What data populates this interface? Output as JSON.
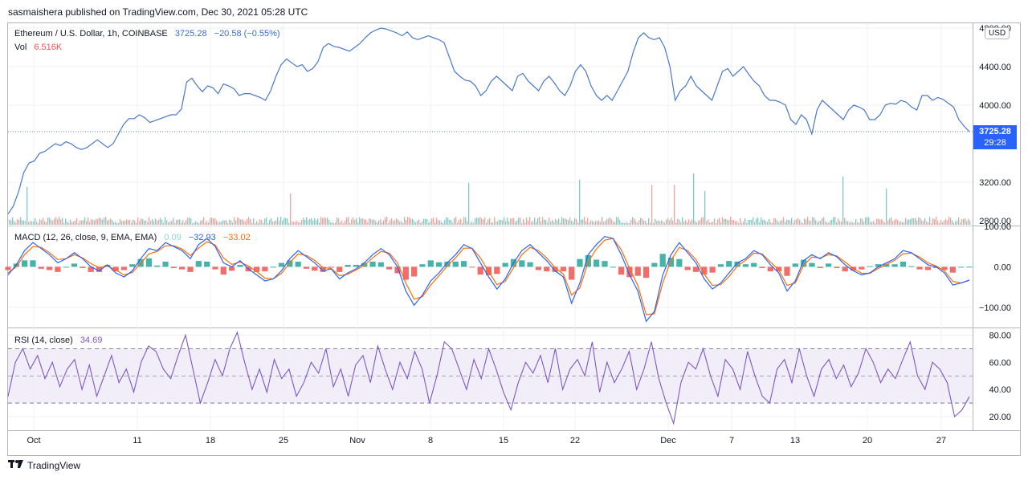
{
  "header": {
    "published": "sasmaishera published on TradingView.com, Dec 30, 2021 05:28 UTC"
  },
  "price_legend": {
    "symbol": "Ethereum / U.S. Dollar, 1h, COINBASE",
    "last": "3725.28",
    "change": "−20.58 (−0.55%)",
    "vol_label": "Vol",
    "vol_value": "6.516K"
  },
  "macd_legend": {
    "title": "MACD (12, 26, close, 9, EMA, EMA)",
    "hist": "0.09",
    "macd": "−32.93",
    "signal": "−33.02"
  },
  "rsi_legend": {
    "title": "RSI (14, close)",
    "value": "34.69"
  },
  "price_tag": {
    "price": "3725.28",
    "countdown": "29:28"
  },
  "currency_button": "USD",
  "footer": {
    "brand": "TradingView",
    "logo": "tradingview-logo-icon"
  },
  "colors": {
    "price_line": "#4a78c9",
    "macd_line": "#2962ff",
    "signal_line": "#ff6d00",
    "hist_up": "#26a69a",
    "hist_down": "#ef5350",
    "rsi_line": "#7e57c2",
    "rsi_band": "#ede7f6",
    "vol_up": "#80cbc4",
    "vol_down": "#f7a19a",
    "price_tag": "#2962ff",
    "grid": "#eef0f3"
  },
  "chart_data": [
    {
      "type": "line",
      "panel": "price",
      "title": "Ethereum / U.S. Dollar, 1h, COINBASE",
      "y_ticks": [
        "4800.00",
        "4400.00",
        "4000.00",
        "3200.00",
        "2800.00"
      ],
      "x_ticks": [
        "Oct",
        "11",
        "18",
        "25",
        "Nov",
        "8",
        "15",
        "22",
        "Dec",
        "7",
        "13",
        "20",
        "27"
      ],
      "ylim": [
        2750,
        4850
      ],
      "last_value": 3725.28,
      "series": [
        {
          "values": [
            2870,
            2950,
            3100,
            3300,
            3400,
            3420,
            3500,
            3520,
            3560,
            3600,
            3580,
            3620,
            3600,
            3560,
            3540,
            3560,
            3600,
            3640,
            3600,
            3560,
            3600,
            3700,
            3800,
            3860,
            3860,
            3900,
            3870,
            3820,
            3840,
            3860,
            3880,
            3900,
            3900,
            3960,
            4240,
            4280,
            4200,
            4140,
            4200,
            4180,
            4120,
            4220,
            4200,
            4170,
            4100,
            4120,
            4120,
            4100,
            4080,
            4050,
            4150,
            4300,
            4420,
            4480,
            4440,
            4400,
            4420,
            4350,
            4380,
            4450,
            4600,
            4640,
            4610,
            4600,
            4580,
            4560,
            4600,
            4640,
            4700,
            4750,
            4780,
            4800,
            4790,
            4770,
            4750,
            4720,
            4760,
            4700,
            4680,
            4700,
            4720,
            4700,
            4680,
            4650,
            4500,
            4350,
            4300,
            4260,
            4250,
            4200,
            4100,
            4150,
            4250,
            4300,
            4250,
            4200,
            4150,
            4300,
            4330,
            4250,
            4200,
            4150,
            4250,
            4300,
            4230,
            4150,
            4100,
            4200,
            4350,
            4420,
            4350,
            4200,
            4100,
            4050,
            4100,
            4050,
            4150,
            4250,
            4350,
            4550,
            4700,
            4750,
            4700,
            4680,
            4700,
            4600,
            4400,
            4050,
            4150,
            4200,
            4300,
            4200,
            4150,
            4100,
            4050,
            4200,
            4350,
            4380,
            4300,
            4350,
            4400,
            4320,
            4250,
            4200,
            4100,
            4050,
            4050,
            4030,
            4000,
            3850,
            3800,
            3900,
            3850,
            3700,
            3950,
            4050,
            4000,
            3950,
            3900,
            3850,
            3950,
            4000,
            3980,
            3950,
            3850,
            3850,
            3900,
            4000,
            4020,
            4010,
            4050,
            4030,
            3980,
            3950,
            4100,
            4100,
            4050,
            4080,
            4060,
            4020,
            3980,
            3850,
            3780,
            3725.28
          ]
        }
      ]
    },
    {
      "type": "bar",
      "panel": "volume",
      "title": "Vol",
      "note": "volume histogram overlaid at bottom of price pane",
      "last_value": 6516
    },
    {
      "type": "line",
      "panel": "macd",
      "title": "MACD (12, 26, close, 9, EMA, EMA)",
      "y_ticks": [
        "100.00",
        "0.00",
        "−100.00"
      ],
      "ylim": [
        -150,
        100
      ],
      "last_values": {
        "histogram": 0.09,
        "macd": -32.93,
        "signal": -33.02
      },
      "series": [
        {
          "name": "MACD",
          "values": [
            -20,
            5,
            40,
            60,
            45,
            30,
            10,
            20,
            35,
            20,
            0,
            -10,
            5,
            -15,
            -25,
            -10,
            20,
            45,
            40,
            60,
            50,
            40,
            20,
            55,
            70,
            50,
            10,
            0,
            15,
            -5,
            -20,
            -35,
            -30,
            -10,
            20,
            40,
            25,
            10,
            -10,
            -5,
            -30,
            -15,
            -5,
            10,
            30,
            45,
            30,
            0,
            -60,
            -95,
            -70,
            -35,
            -15,
            10,
            30,
            55,
            45,
            10,
            -25,
            -55,
            -30,
            10,
            40,
            55,
            35,
            15,
            -10,
            -25,
            -90,
            -40,
            30,
            55,
            75,
            70,
            30,
            -20,
            -60,
            -135,
            -110,
            -20,
            30,
            60,
            35,
            10,
            -30,
            -55,
            -40,
            -15,
            10,
            20,
            40,
            30,
            5,
            -15,
            -60,
            -35,
            15,
            30,
            20,
            35,
            25,
            5,
            -10,
            -20,
            -15,
            0,
            10,
            20,
            40,
            35,
            20,
            5,
            0,
            -15,
            -45,
            -40,
            -32.93
          ]
        },
        {
          "name": "Signal",
          "values": [
            -15,
            0,
            30,
            50,
            48,
            35,
            18,
            20,
            30,
            22,
            8,
            -2,
            2,
            -8,
            -20,
            -14,
            8,
            32,
            38,
            52,
            52,
            44,
            28,
            46,
            62,
            54,
            22,
            6,
            12,
            2,
            -12,
            -28,
            -30,
            -16,
            10,
            32,
            28,
            16,
            -2,
            -4,
            -22,
            -18,
            -8,
            4,
            22,
            38,
            34,
            10,
            -40,
            -80,
            -74,
            -45,
            -22,
            2,
            22,
            46,
            46,
            22,
            -12,
            -44,
            -36,
            -2,
            30,
            48,
            40,
            22,
            -2,
            -18,
            -70,
            -52,
            12,
            44,
            66,
            70,
            42,
            -4,
            -46,
            -118,
            -116,
            -40,
            16,
            48,
            40,
            18,
            -18,
            -46,
            -44,
            -24,
            2,
            16,
            34,
            32,
            12,
            -8,
            -46,
            -40,
            4,
            24,
            22,
            30,
            27,
            12,
            -4,
            -16,
            -16,
            -4,
            6,
            16,
            32,
            34,
            24,
            10,
            2,
            -10,
            -36,
            -40,
            -33.02
          ]
        }
      ]
    },
    {
      "type": "line",
      "panel": "rsi",
      "title": "RSI (14, close)",
      "y_ticks": [
        "80.00",
        "60.00",
        "40.00",
        "20.00"
      ],
      "ylim": [
        10,
        85
      ],
      "bands": [
        30,
        50,
        70
      ],
      "last_value": 34.69,
      "series": [
        {
          "values": [
            35,
            60,
            70,
            55,
            65,
            48,
            60,
            42,
            55,
            62,
            40,
            58,
            35,
            50,
            65,
            45,
            55,
            38,
            60,
            72,
            68,
            55,
            48,
            65,
            80,
            55,
            30,
            45,
            62,
            50,
            70,
            82,
            60,
            40,
            55,
            38,
            62,
            48,
            55,
            35,
            45,
            60,
            52,
            70,
            42,
            55,
            35,
            58,
            65,
            45,
            72,
            55,
            40,
            60,
            48,
            68,
            55,
            30,
            50,
            75,
            70,
            55,
            40,
            62,
            48,
            70,
            55,
            38,
            25,
            45,
            60,
            52,
            65,
            45,
            70,
            40,
            55,
            62,
            50,
            75,
            38,
            60,
            45,
            55,
            68,
            40,
            55,
            75,
            48,
            30,
            15,
            45,
            60,
            55,
            70,
            50,
            35,
            62,
            55,
            40,
            68,
            50,
            35,
            30,
            55,
            62,
            45,
            70,
            50,
            35,
            55,
            62,
            48,
            58,
            42,
            52,
            70,
            60,
            45,
            55,
            48,
            62,
            75,
            50,
            40,
            60,
            55,
            45,
            20,
            25,
            34.69
          ]
        }
      ]
    }
  ]
}
